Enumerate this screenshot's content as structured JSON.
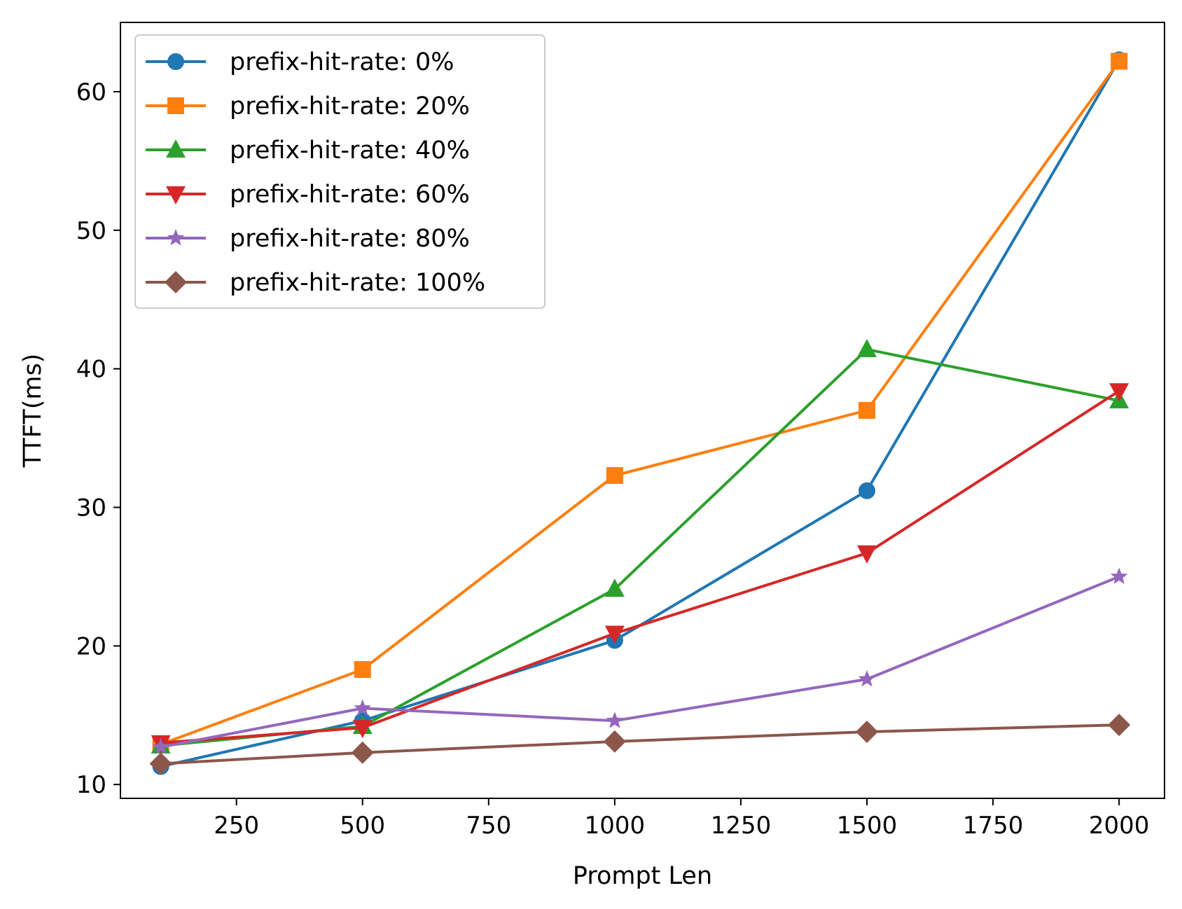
{
  "chart_data": {
    "type": "line",
    "title": "",
    "xlabel": "Prompt Len",
    "ylabel": "TTFT(ms)",
    "xlim": [
      20,
      2090
    ],
    "ylim": [
      9.0,
      65.0
    ],
    "xticks": [
      250,
      500,
      750,
      1000,
      1250,
      1500,
      1750,
      2000
    ],
    "yticks": [
      10,
      20,
      30,
      40,
      50,
      60
    ],
    "x": [
      100,
      500,
      1000,
      1500,
      2000
    ],
    "legend_position": "upper-left",
    "grid": false,
    "series": [
      {
        "name": "prefix-hit-rate: 0%",
        "color": "#1f77b4",
        "marker": "circle",
        "values": [
          11.3,
          14.6,
          20.4,
          31.2,
          62.3
        ]
      },
      {
        "name": "prefix-hit-rate: 20%",
        "color": "#ff7f0e",
        "marker": "square",
        "values": [
          12.9,
          18.3,
          32.3,
          37.0,
          62.2
        ]
      },
      {
        "name": "prefix-hit-rate: 40%",
        "color": "#2ca02c",
        "marker": "triangle-up",
        "values": [
          12.8,
          14.2,
          24.1,
          41.4,
          37.7
        ]
      },
      {
        "name": "prefix-hit-rate: 60%",
        "color": "#d62728",
        "marker": "triangle-down",
        "values": [
          13.0,
          14.1,
          20.9,
          26.7,
          38.4
        ]
      },
      {
        "name": "prefix-hit-rate: 80%",
        "color": "#9467bd",
        "marker": "star",
        "values": [
          12.7,
          15.5,
          14.6,
          17.6,
          25.0
        ]
      },
      {
        "name": "prefix-hit-rate: 100%",
        "color": "#8c564b",
        "marker": "diamond",
        "values": [
          11.5,
          12.3,
          13.1,
          13.8,
          14.3
        ]
      }
    ]
  }
}
